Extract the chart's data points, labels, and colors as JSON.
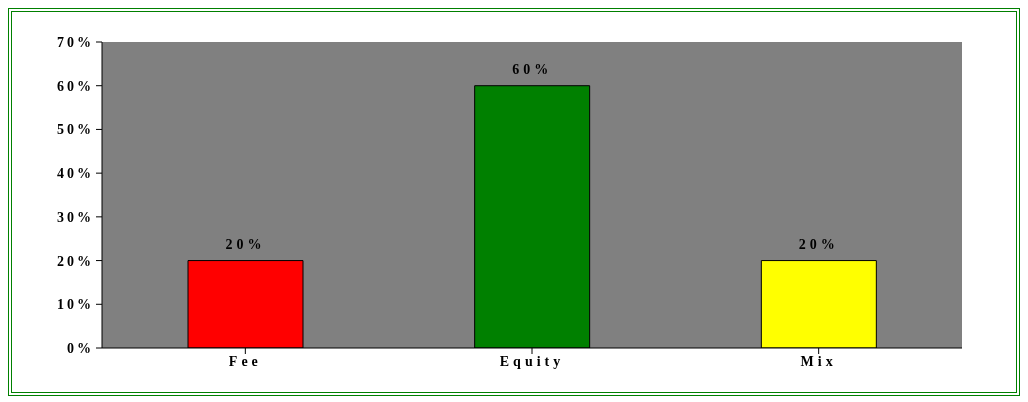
{
  "chart_data": {
    "type": "bar",
    "categories": [
      "Fee",
      "Equity",
      "Mix"
    ],
    "values": [
      20,
      60,
      20
    ],
    "colors": [
      "#ff0000",
      "#008000",
      "#ffff00"
    ],
    "value_labels": [
      "20%",
      "60%",
      "20%"
    ],
    "ylim": [
      0,
      70
    ],
    "yticks": [
      {
        "value": 0,
        "label": "0%"
      },
      {
        "value": 10,
        "label": "10%"
      },
      {
        "value": 20,
        "label": "20%"
      },
      {
        "value": 30,
        "label": "30%"
      },
      {
        "value": 40,
        "label": "40%"
      },
      {
        "value": 50,
        "label": "50%"
      },
      {
        "value": 60,
        "label": "60%"
      },
      {
        "value": 70,
        "label": "70%"
      }
    ],
    "legend": false
  }
}
